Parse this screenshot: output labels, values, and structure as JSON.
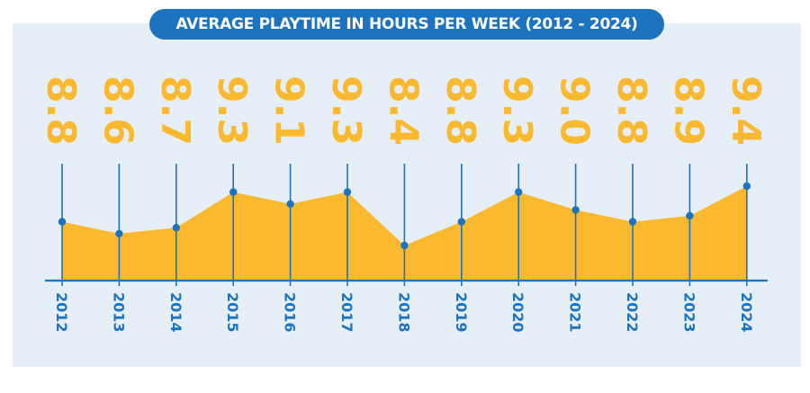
{
  "chart_data": {
    "type": "area",
    "title": "AVERAGE PLAYTIME IN HOURS PER WEEK (2012 - 2024)",
    "categories": [
      "2012",
      "2013",
      "2014",
      "2015",
      "2016",
      "2017",
      "2018",
      "2019",
      "2020",
      "2021",
      "2022",
      "2023",
      "2024"
    ],
    "values": [
      8.8,
      8.6,
      8.7,
      9.3,
      9.1,
      9.3,
      8.4,
      8.8,
      9.3,
      9.0,
      8.8,
      8.9,
      9.4
    ],
    "value_labels": [
      "8.8",
      "8.6",
      "8.7",
      "9.3",
      "9.1",
      "9.3",
      "8.4",
      "8.8",
      "9.3",
      "9.0",
      "8.8",
      "8.9",
      "9.4"
    ],
    "xlabel": "",
    "ylabel": "",
    "grid": false,
    "colors": {
      "fill": "#fbb92f",
      "line": "#1e73be",
      "background": "#e6eef8",
      "title_bg": "#1e73be",
      "title_text": "#ffffff"
    }
  }
}
